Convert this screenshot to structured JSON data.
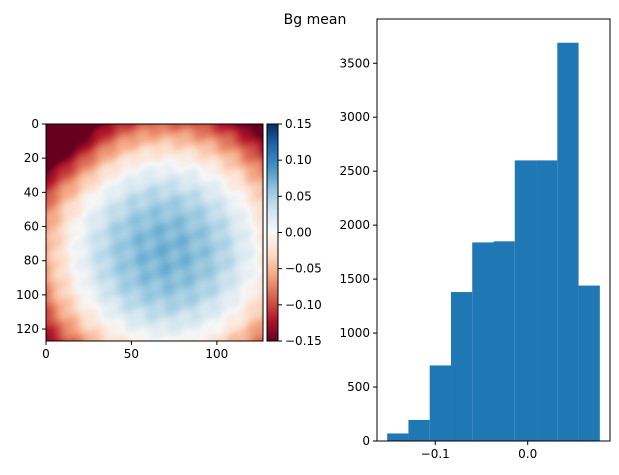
{
  "figure": {
    "suptitle": "Bg mean"
  },
  "chart_data": [
    {
      "type": "heatmap",
      "colormap": "RdBu",
      "x_ticks": [
        0,
        50,
        100
      ],
      "y_ticks": [
        0,
        20,
        40,
        60,
        80,
        100,
        120
      ],
      "xlim": [
        0,
        127
      ],
      "ylim": [
        127,
        0
      ],
      "colorbar": {
        "range": [
          -0.15,
          0.15
        ],
        "ticks": [
          0.15,
          0.1,
          0.05,
          0.0,
          -0.05,
          -0.1,
          -0.15
        ],
        "tick_labels": [
          "0.15",
          "0.10",
          "0.05",
          "0.00",
          "−0.05",
          "−0.10",
          "−0.15"
        ]
      }
    },
    {
      "type": "bar",
      "subtype": "histogram",
      "bin_edges": [
        -0.152,
        -0.129,
        -0.106,
        -0.083,
        -0.06,
        -0.037,
        -0.014,
        0.009,
        0.032,
        0.055,
        0.078
      ],
      "counts": [
        70,
        195,
        700,
        1380,
        1840,
        1850,
        2600,
        2600,
        3690,
        1440
      ],
      "color": "#1f77b4",
      "xlim": [
        -0.163,
        0.089
      ],
      "ylim": [
        0,
        3910
      ],
      "x_ticks": [
        -0.1,
        0.0
      ],
      "x_tick_labels": [
        "−0.1",
        "0.0"
      ],
      "y_ticks": [
        0,
        500,
        1000,
        1500,
        2000,
        2500,
        3000,
        3500
      ],
      "y_tick_labels": [
        "0",
        "500",
        "1000",
        "1500",
        "2000",
        "2500",
        "3000",
        "3500"
      ]
    }
  ]
}
